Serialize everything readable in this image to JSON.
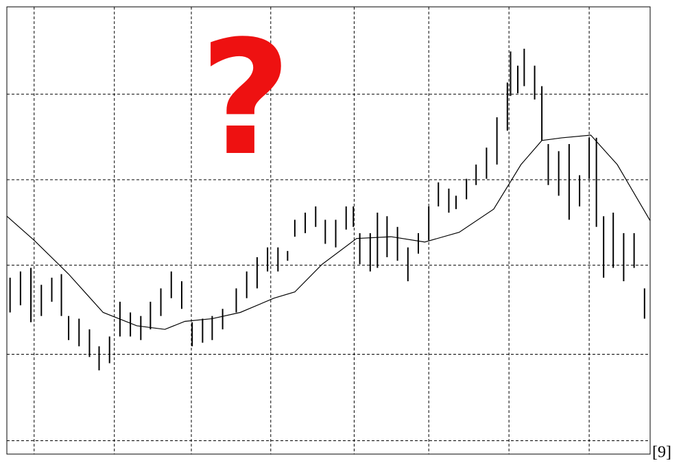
{
  "chart_data": {
    "type": "range-bar",
    "symbol": "?",
    "symbol_color": "#ee1111",
    "annotation": "[9]",
    "color": "#000000",
    "grid": true,
    "xlim": [
      0,
      8.02
    ],
    "ylim": [
      0,
      5.02
    ],
    "xticks": [
      0.34,
      1.34,
      2.3,
      3.29,
      4.33,
      5.26,
      6.26,
      7.26
    ],
    "yticks": [
      0.15,
      1.12,
      2.12,
      3.08,
      4.04
    ],
    "x": [
      0.04,
      0.17,
      0.3,
      0.43,
      0.56,
      0.68,
      0.77,
      0.9,
      1.03,
      1.15,
      1.28,
      1.41,
      1.54,
      1.67,
      1.79,
      1.92,
      2.05,
      2.18,
      2.31,
      2.44,
      2.56,
      2.69,
      2.86,
      2.99,
      3.12,
      3.25,
      3.38,
      3.5,
      3.59,
      3.72,
      3.85,
      3.97,
      4.1,
      4.23,
      4.32,
      4.4,
      4.53,
      4.62,
      4.74,
      4.87,
      5.0,
      5.13,
      5.26,
      5.38,
      5.51,
      5.6,
      5.73,
      5.85,
      5.98,
      6.11,
      6.24,
      6.28,
      6.37,
      6.45,
      6.58,
      6.67,
      6.75,
      6.88,
      7.01,
      7.14,
      7.26,
      7.35,
      7.44,
      7.56,
      7.69,
      7.82,
      7.95
    ],
    "high": [
      1.98,
      2.05,
      2.09,
      1.9,
      1.98,
      2.02,
      1.55,
      1.52,
      1.4,
      1.21,
      1.32,
      1.71,
      1.59,
      1.55,
      1.71,
      1.86,
      2.05,
      1.94,
      1.48,
      1.52,
      1.55,
      1.63,
      1.86,
      2.05,
      2.21,
      2.32,
      2.32,
      2.28,
      2.63,
      2.71,
      2.78,
      2.63,
      2.63,
      2.78,
      2.78,
      2.48,
      2.48,
      2.71,
      2.67,
      2.55,
      2.32,
      2.48,
      2.78,
      3.05,
      2.98,
      2.9,
      3.09,
      3.25,
      3.44,
      3.78,
      4.17,
      4.52,
      4.36,
      4.55,
      4.36,
      4.13,
      3.48,
      3.4,
      3.48,
      3.13,
      3.55,
      3.55,
      2.67,
      2.71,
      2.48,
      2.48,
      1.86
    ],
    "low": [
      1.59,
      1.67,
      1.48,
      1.55,
      1.71,
      1.55,
      1.28,
      1.21,
      1.09,
      0.94,
      1.02,
      1.32,
      1.32,
      1.28,
      1.4,
      1.55,
      1.75,
      1.63,
      1.21,
      1.25,
      1.28,
      1.4,
      1.59,
      1.75,
      1.86,
      2.05,
      2.05,
      2.17,
      2.44,
      2.48,
      2.55,
      2.36,
      2.32,
      2.52,
      2.55,
      2.13,
      2.05,
      2.09,
      2.21,
      2.17,
      1.94,
      2.25,
      2.4,
      2.78,
      2.71,
      2.75,
      2.86,
      3.02,
      3.09,
      3.25,
      3.63,
      4.02,
      4.05,
      4.13,
      3.98,
      3.52,
      3.02,
      2.9,
      2.63,
      2.78,
      3.09,
      2.55,
      1.98,
      2.09,
      1.94,
      2.09,
      1.52
    ],
    "line": {
      "x": [
        0,
        0.34,
        0.77,
        1.2,
        1.62,
        1.97,
        2.22,
        2.56,
        2.91,
        3.33,
        3.59,
        3.93,
        4.36,
        4.79,
        5.21,
        5.64,
        6.07,
        6.41,
        6.67,
        6.92,
        7.28,
        7.61,
        8.02
      ],
      "values": [
        2.67,
        2.4,
        2.02,
        1.59,
        1.44,
        1.4,
        1.49,
        1.52,
        1.59,
        1.75,
        1.82,
        2.13,
        2.42,
        2.44,
        2.38,
        2.49,
        2.75,
        3.25,
        3.52,
        3.55,
        3.58,
        3.25,
        2.62
      ]
    }
  }
}
